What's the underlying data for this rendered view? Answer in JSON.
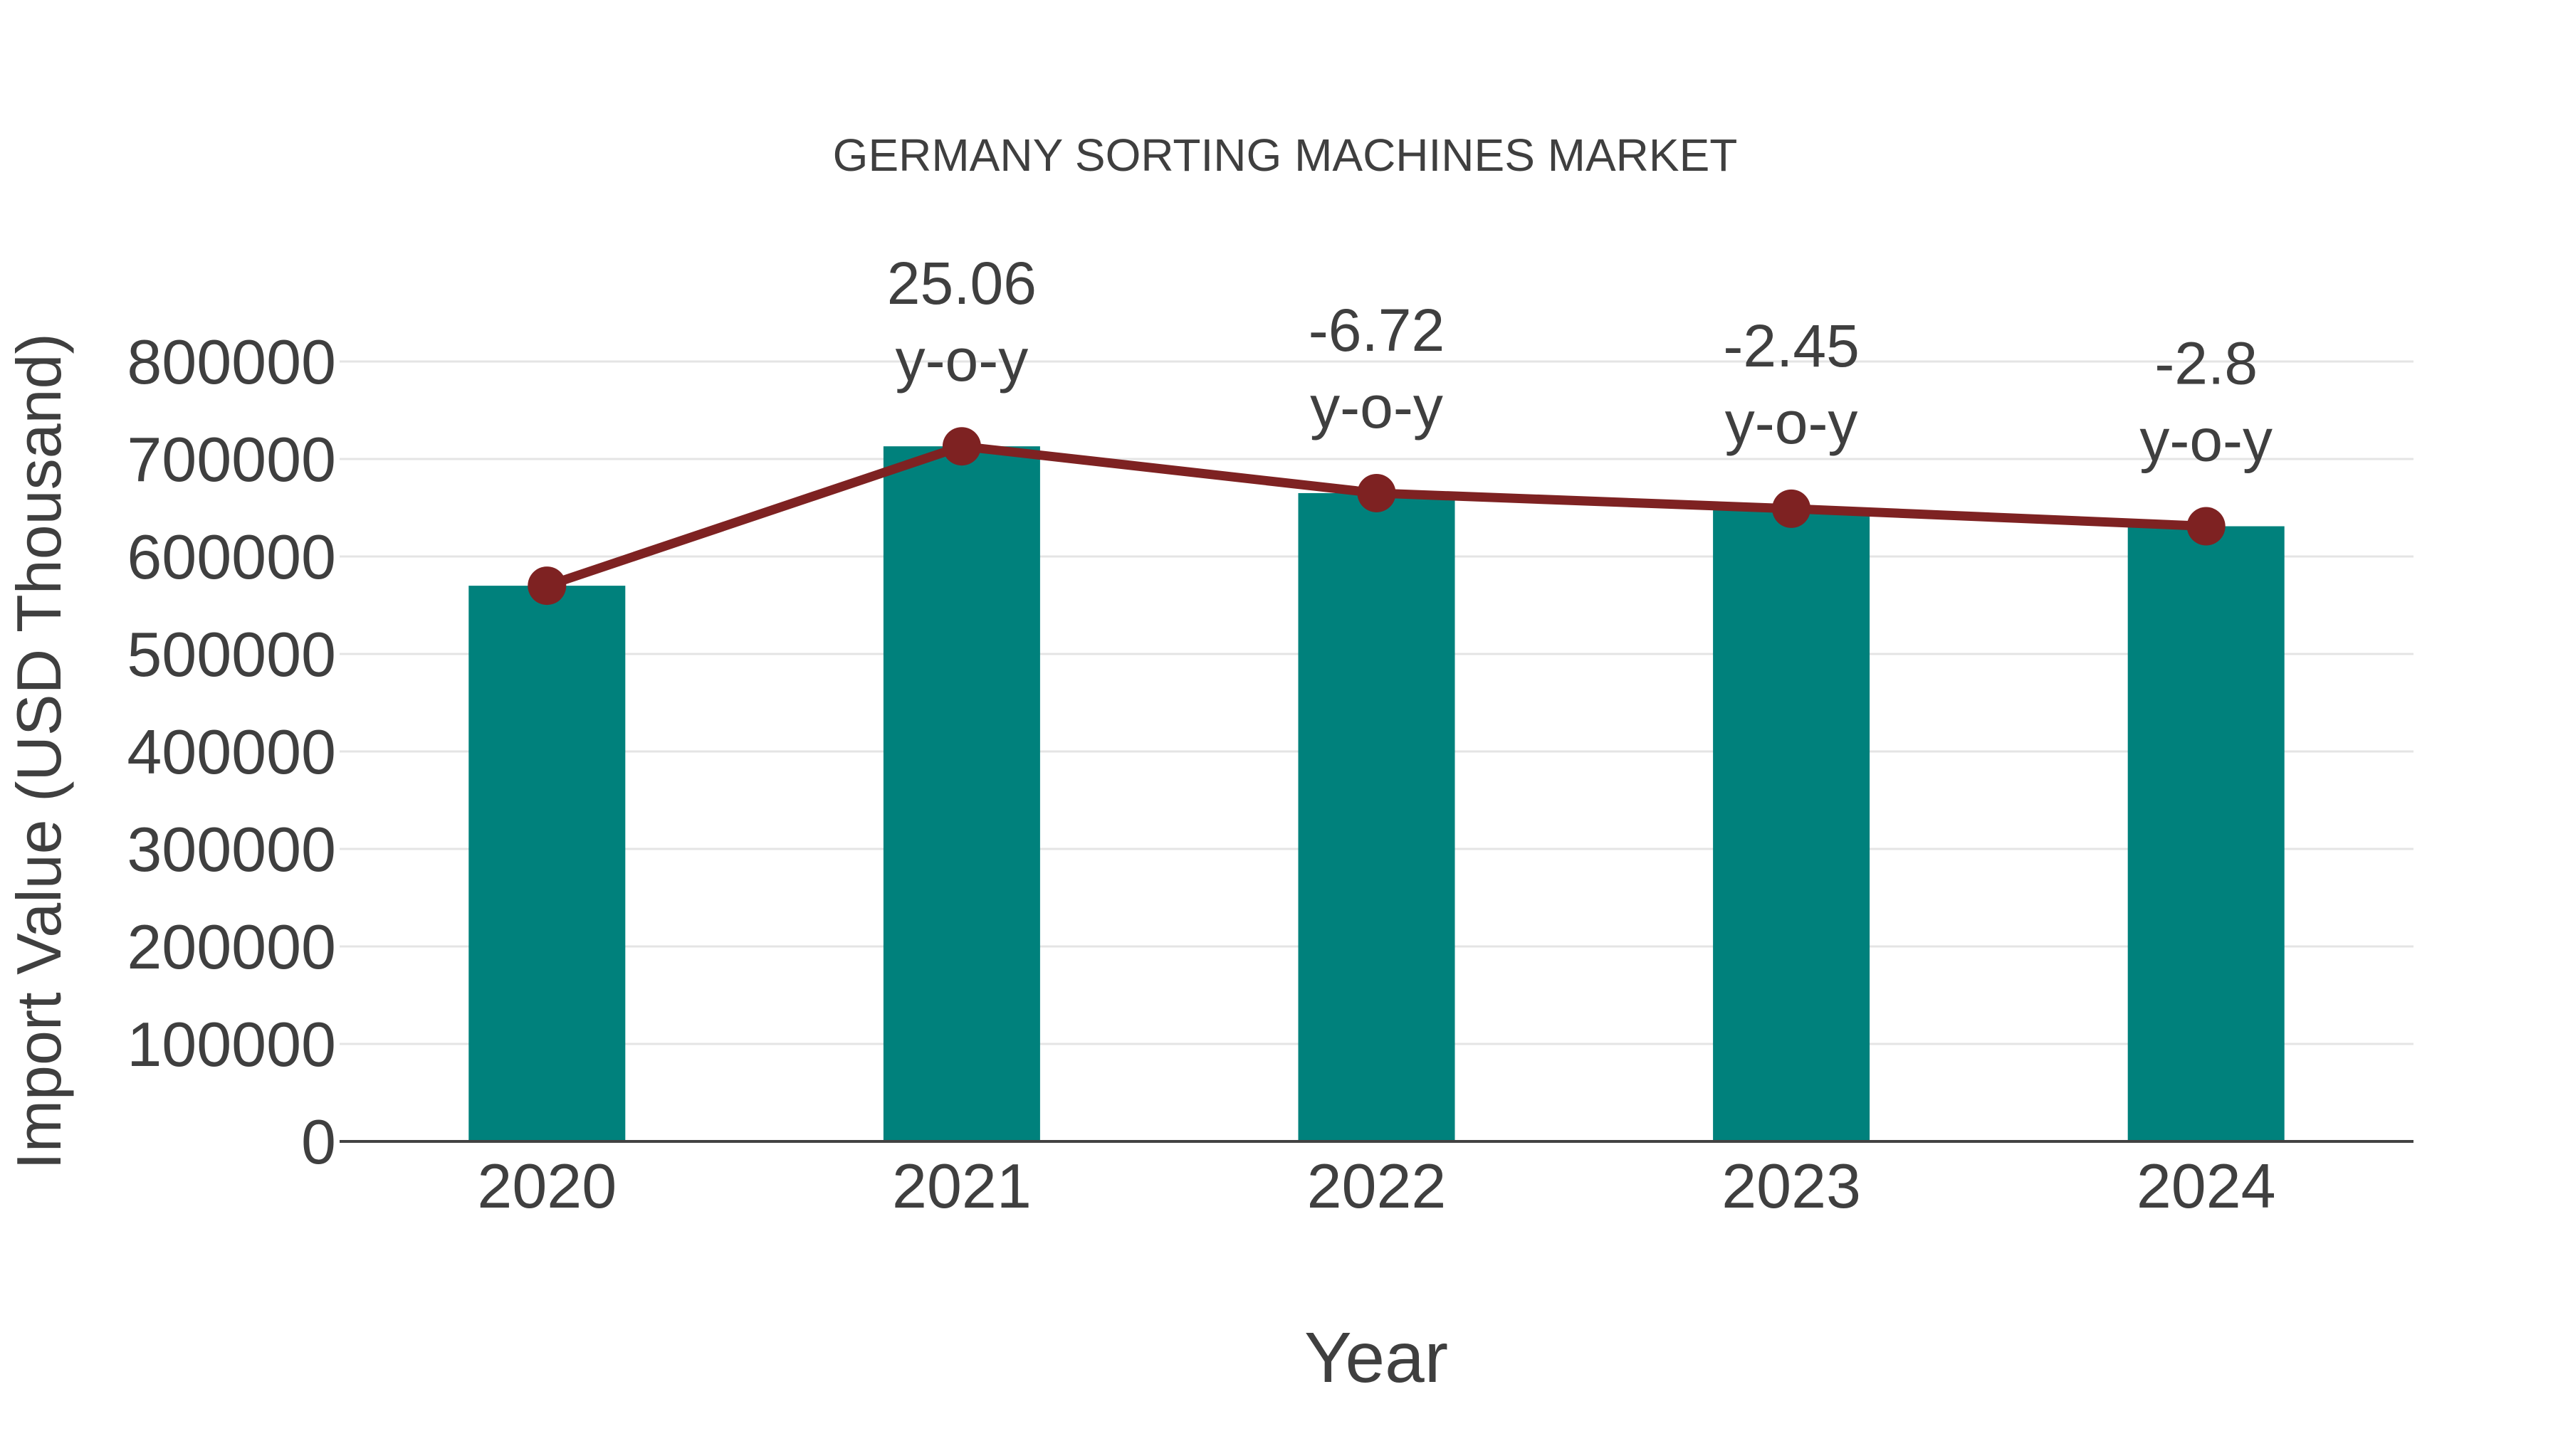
{
  "chart_data": {
    "type": "bar",
    "title": "GERMANY SORTING MACHINES MARKET",
    "xlabel": "Year",
    "ylabel": "Import Value (USD Thousand)",
    "categories": [
      "2020",
      "2021",
      "2022",
      "2023",
      "2024"
    ],
    "series": [
      {
        "name": "Import Value (bar)",
        "type": "bar",
        "values": [
          570000,
          713000,
          665000,
          649000,
          631000
        ]
      },
      {
        "name": "Import Value (trend line)",
        "type": "line",
        "values": [
          570000,
          713000,
          665000,
          649000,
          631000
        ]
      }
    ],
    "annotations": [
      {
        "category": "2021",
        "value": "25.06",
        "suffix": "y-o-y"
      },
      {
        "category": "2022",
        "value": "-6.72",
        "suffix": "y-o-y"
      },
      {
        "category": "2023",
        "value": "-2.45",
        "suffix": "y-o-y"
      },
      {
        "category": "2024",
        "value": "-2.8",
        "suffix": "y-o-y"
      }
    ],
    "ylim": [
      0,
      800000
    ],
    "ytick_step": 100000,
    "yticks": [
      0,
      100000,
      200000,
      300000,
      400000,
      500000,
      600000,
      700000,
      800000
    ],
    "grid": "horizontal",
    "legend": "none",
    "colors": {
      "bar": "#00817C",
      "line": "#7E2222",
      "marker": "#7E2222",
      "grid": "#E4E4E4",
      "axis": "#424242",
      "text": "#3F3F3F"
    }
  }
}
